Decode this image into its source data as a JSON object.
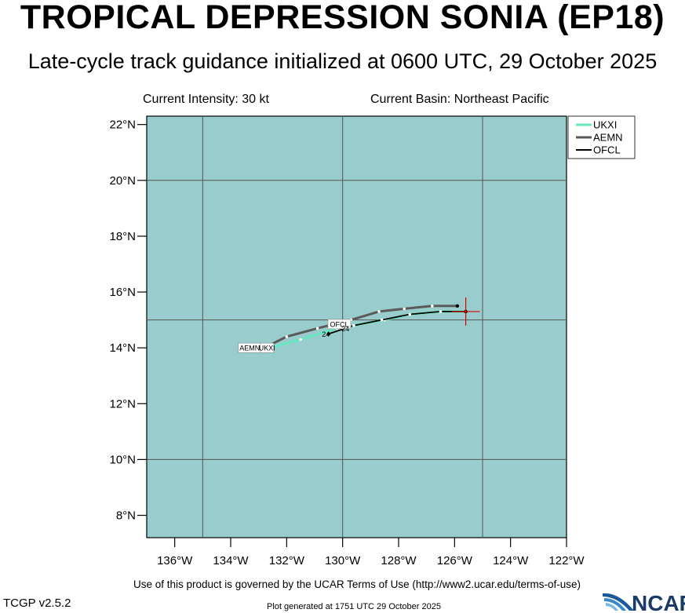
{
  "header": {
    "title": "TROPICAL DEPRESSION SONIA (EP18)",
    "subtitle": "Late-cycle track guidance initialized at 0600 UTC, 29 October 2025",
    "intensity": "Current Intensity: 30 kt",
    "basin": "Current Basin: Northeast Pacific"
  },
  "footer": {
    "terms": "Use of this product is governed by the UCAR Terms of Use (http://www2.ucar.edu/terms-of-use)",
    "version": "TCGP v2.5.2",
    "generated": "Plot generated at 1751 UTC   29 October 2025",
    "logo": "NCAR"
  },
  "chart_data": {
    "type": "line",
    "map_background": "#99cccc",
    "xlim": [
      -137,
      -122
    ],
    "ylim": [
      7.2,
      22.3
    ],
    "x_ticks": [
      -136,
      -134,
      -132,
      -130,
      -128,
      -126,
      -124,
      -122
    ],
    "x_tick_labels": [
      "136°W",
      "134°W",
      "132°W",
      "130°W",
      "128°W",
      "126°W",
      "124°W",
      "122°W"
    ],
    "y_ticks": [
      8,
      10,
      12,
      14,
      16,
      18,
      20,
      22
    ],
    "y_tick_labels": [
      "8°N",
      "10°N",
      "12°N",
      "14°N",
      "16°N",
      "18°N",
      "20°N",
      "22°N"
    ],
    "gridlines_lon": [
      -135,
      -130,
      -125
    ],
    "gridlines_lat": [
      10,
      15,
      20
    ],
    "legend_position": "top-right",
    "current_position": [
      -125.6,
      15.3
    ],
    "series": [
      {
        "name": "UKXI",
        "color": "#66e8c0",
        "points": [
          [
            -125.6,
            15.3
          ],
          [
            -126.5,
            15.3
          ],
          [
            -127.6,
            15.2
          ],
          [
            -128.5,
            15.0
          ],
          [
            -130.2,
            14.7
          ],
          [
            -131.5,
            14.3
          ],
          [
            -132.6,
            14.0
          ]
        ],
        "end_label": "UKXI"
      },
      {
        "name": "AEMN",
        "color": "#5a5a5a",
        "points": [
          [
            -125.9,
            15.5
          ],
          [
            -126.8,
            15.5
          ],
          [
            -127.8,
            15.4
          ],
          [
            -128.7,
            15.3
          ],
          [
            -129.7,
            15.0
          ],
          [
            -130.9,
            14.7
          ],
          [
            -132.0,
            14.4
          ],
          [
            -132.8,
            14.0
          ]
        ],
        "end_label": "AEMN"
      },
      {
        "name": "OFCL",
        "color": "#000000",
        "points": [
          [
            -125.6,
            15.3
          ],
          [
            -126.5,
            15.3
          ],
          [
            -127.6,
            15.2
          ],
          [
            -128.6,
            15.0
          ],
          [
            -129.6,
            14.8
          ],
          [
            -130.5,
            14.5
          ]
        ],
        "end_label": "OFCL"
      }
    ],
    "hour_labels": [
      {
        "text": "24",
        "lon": -130.6,
        "lat": 14.4
      },
      {
        "text": "24",
        "lon": -129.9,
        "lat": 14.6
      }
    ]
  }
}
